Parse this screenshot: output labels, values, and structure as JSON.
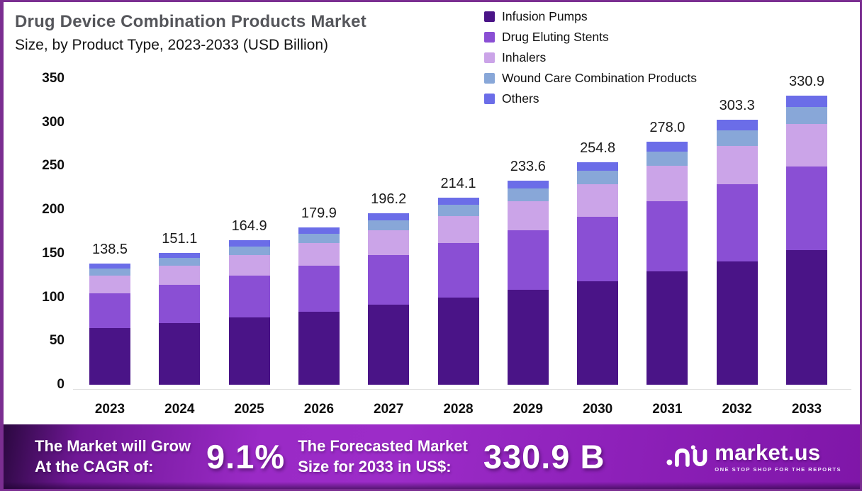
{
  "header": {
    "title_bold": "Drug Device Combination Products Market",
    "title_sub": "Size, by Product Type, 2023-2033 (USD Billion)"
  },
  "chart_data": {
    "type": "bar",
    "stacked": true,
    "title": "Drug Device Combination Products Market Size, by Product Type, 2023-2033 (USD Billion)",
    "categories": [
      "2023",
      "2024",
      "2025",
      "2026",
      "2027",
      "2028",
      "2029",
      "2030",
      "2031",
      "2032",
      "2033"
    ],
    "series": [
      {
        "name": "Infusion Pumps",
        "color": "#4a1487",
        "values": [
          64.4,
          70.3,
          76.7,
          83.7,
          91.2,
          99.6,
          108.6,
          118.5,
          129.3,
          141.0,
          153.9
        ]
      },
      {
        "name": "Drug Eluting Stents",
        "color": "#8a4fd4",
        "values": [
          40.2,
          43.8,
          47.8,
          52.2,
          56.9,
          62.1,
          67.7,
          73.9,
          80.6,
          88.0,
          96.0
        ]
      },
      {
        "name": "Inhalers",
        "color": "#cba4e8",
        "values": [
          20.1,
          21.9,
          23.9,
          26.1,
          28.4,
          31.0,
          33.9,
          36.9,
          40.3,
          44.0,
          48.0
        ]
      },
      {
        "name": "Wound Care Combination Products",
        "color": "#88a7d8",
        "values": [
          8.3,
          9.1,
          9.9,
          10.8,
          11.8,
          12.8,
          14.0,
          15.3,
          16.7,
          18.2,
          19.9
        ]
      },
      {
        "name": "Others",
        "color": "#6b6de8",
        "values": [
          5.5,
          6.0,
          6.6,
          7.1,
          7.9,
          8.6,
          9.4,
          10.2,
          11.1,
          12.1,
          13.1
        ]
      }
    ],
    "totals": [
      138.5,
      151.1,
      164.9,
      179.9,
      196.2,
      214.1,
      233.6,
      254.8,
      278.0,
      303.3,
      330.9
    ],
    "totals_labels": [
      "138.5",
      "151.1",
      "164.9",
      "179.9",
      "196.2",
      "214.1",
      "233.6",
      "254.8",
      "278.0",
      "303.3",
      "330.9"
    ],
    "ylim": [
      0,
      350
    ],
    "yticks": [
      0,
      50,
      100,
      150,
      200,
      250,
      300,
      350
    ],
    "legend_position": "top-right",
    "grid": false
  },
  "banner": {
    "left_line1": "The Market will Grow",
    "left_line2": "At the CAGR of:",
    "cagr": "9.1%",
    "mid_line1": "The Forecasted Market",
    "mid_line2": "Size for 2033 in US$:",
    "forecast": "330.9 B",
    "brand": "market.us",
    "brand_tagline": "ONE STOP SHOP FOR THE REPORTS"
  },
  "colors": {
    "frame_border": "#7b2e91",
    "title_gray": "#55565b",
    "banner_purple_bright": "#9c2cc8",
    "banner_purple_dark": "#2b0840",
    "baseline_gray": "#dedede"
  }
}
